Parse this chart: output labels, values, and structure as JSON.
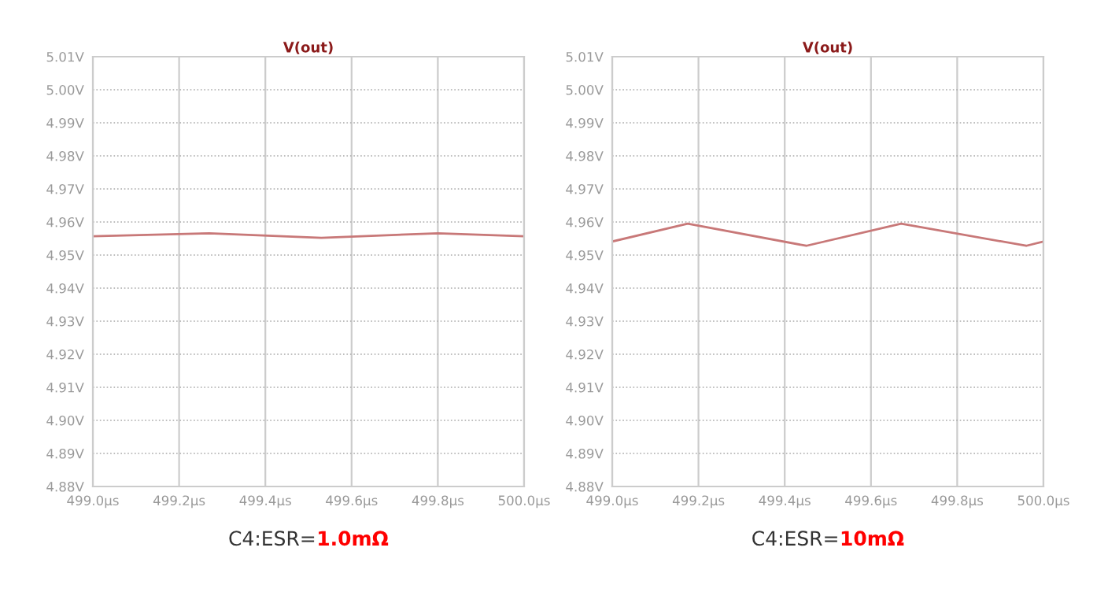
{
  "chart_data": [
    {
      "type": "line",
      "title": "V(out)",
      "x": [
        499.0,
        499.27,
        499.53,
        499.8,
        500.0
      ],
      "series": [
        {
          "color": "#c87878",
          "values": [
            4.9557,
            4.9566,
            4.9552,
            4.9566,
            4.9557
          ]
        }
      ],
      "xlim": [
        499.0,
        500.0
      ],
      "xticks": [
        {
          "value": 499.0,
          "label": "499.0µs"
        },
        {
          "value": 499.2,
          "label": "499.2µs"
        },
        {
          "value": 499.4,
          "label": "499.4µs"
        },
        {
          "value": 499.6,
          "label": "499.6µs"
        },
        {
          "value": 499.8,
          "label": "499.8µs"
        },
        {
          "value": 500.0,
          "label": "500.0µs"
        }
      ],
      "ylim": [
        4.88,
        5.01
      ],
      "yticks": [
        {
          "value": 4.88,
          "label": "4.88V"
        },
        {
          "value": 4.89,
          "label": "4.89V"
        },
        {
          "value": 4.9,
          "label": "4.90V"
        },
        {
          "value": 4.91,
          "label": "4.91V"
        },
        {
          "value": 4.92,
          "label": "4.92V"
        },
        {
          "value": 4.93,
          "label": "4.93V"
        },
        {
          "value": 4.94,
          "label": "4.94V"
        },
        {
          "value": 4.95,
          "label": "4.95V"
        },
        {
          "value": 4.96,
          "label": "4.96V"
        },
        {
          "value": 4.97,
          "label": "4.97V"
        },
        {
          "value": 4.98,
          "label": "4.98V"
        },
        {
          "value": 4.99,
          "label": "4.99V"
        },
        {
          "value": 5.0,
          "label": "5.00V"
        },
        {
          "value": 5.01,
          "label": "5.01V"
        }
      ],
      "grid": true,
      "annotations": [
        "C4:ESR=",
        "1.0mΩ"
      ]
    },
    {
      "type": "line",
      "title": "V(out)",
      "x": [
        499.0,
        499.175,
        499.45,
        499.67,
        499.96,
        500.0
      ],
      "series": [
        {
          "color": "#c87878",
          "values": [
            4.9541,
            4.9595,
            4.9528,
            4.9595,
            4.9528,
            4.9541
          ]
        }
      ],
      "xlim": [
        499.0,
        500.0
      ],
      "xticks": [
        {
          "value": 499.0,
          "label": "499.0µs"
        },
        {
          "value": 499.2,
          "label": "499.2µs"
        },
        {
          "value": 499.4,
          "label": "499.4µs"
        },
        {
          "value": 499.6,
          "label": "499.6µs"
        },
        {
          "value": 499.8,
          "label": "499.8µs"
        },
        {
          "value": 500.0,
          "label": "500.0µs"
        }
      ],
      "ylim": [
        4.88,
        5.01
      ],
      "yticks": [
        {
          "value": 4.88,
          "label": "4.88V"
        },
        {
          "value": 4.89,
          "label": "4.89V"
        },
        {
          "value": 4.9,
          "label": "4.90V"
        },
        {
          "value": 4.91,
          "label": "4.91V"
        },
        {
          "value": 4.92,
          "label": "4.92V"
        },
        {
          "value": 4.93,
          "label": "4.93V"
        },
        {
          "value": 4.94,
          "label": "4.94V"
        },
        {
          "value": 4.95,
          "label": "4.95V"
        },
        {
          "value": 4.96,
          "label": "4.96V"
        },
        {
          "value": 4.97,
          "label": "4.97V"
        },
        {
          "value": 4.98,
          "label": "4.98V"
        },
        {
          "value": 4.99,
          "label": "4.99V"
        },
        {
          "value": 5.0,
          "label": "5.00V"
        },
        {
          "value": 5.01,
          "label": "5.01V"
        }
      ],
      "grid": true,
      "annotations": [
        "C4:ESR=",
        "10mΩ"
      ]
    }
  ]
}
